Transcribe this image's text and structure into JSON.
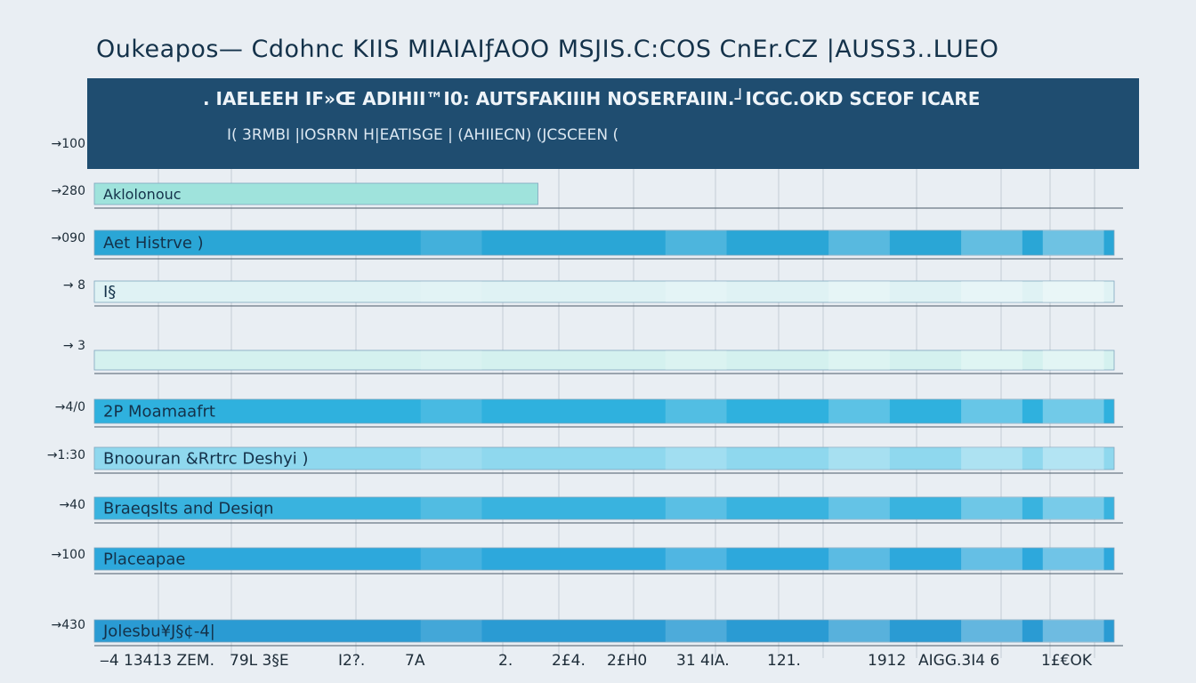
{
  "title": "Oukeapos— Cdohnc KIIS MIAIAIƒΑOO MSJIS.C:COS CnEr.CZ |AUSS3..LUEO",
  "header": {
    "line1": ". IAELEEH IF»Œ ADIHII™I0: AUTSFAKIIIH NOSERFAIIN.┘ICGC.OKD SCEOF ICARE",
    "line2": "I( 3RMBI |IOSRRN H|EATISGE | (AHIIECN) (JCSCEEN ("
  },
  "colors": {
    "background": "#e9eef3",
    "header": "#1f4d70",
    "bar_dark": "#1f97cf",
    "bar_mid": "#3db8e1",
    "bar_light": "#8fd8ee",
    "bar_mint": "#9fe3dc",
    "bar_pale": "#d4f1ef",
    "text_dark": "#14324a",
    "grid": "#c3ccd6"
  },
  "chart_data": {
    "type": "bar",
    "orientation": "horizontal",
    "title": "Oukeapos— Cdohnc KIIS MIAIAIƒΑOO MSJIS.C:COS CnEr.CZ |AUSS3..LUEO",
    "y_tick_labels": [
      "→100",
      "→280",
      "→090",
      "→ 8",
      "→ 3",
      "→4/0",
      "→1:30",
      "→40",
      "→100",
      "→430"
    ],
    "x_tick_labels": [
      "‒4 13413 ZEM.",
      "79L 3§E",
      "I2?.",
      "7A",
      "2.",
      "2£4.",
      "2£H0",
      "31 4IA.",
      "121.",
      "1912",
      "AIGG.3I4 6",
      "1£€OK"
    ],
    "categories": [
      "Aklolonouc",
      "Aet Histrve )",
      "I§",
      "",
      "2P Moamaafrt",
      "Bnoouran &Rrtrc Deshyi )",
      "Braeqslts and Desiqn",
      "Placeapae",
      "Jolesbu¥J§¢-4|"
    ],
    "values": [
      0.435,
      1.0,
      1.0,
      1.0,
      1.0,
      1.0,
      1.0,
      1.0,
      1.0
    ],
    "bar_colors": [
      "#9fe3dc",
      "#2aa6d6",
      "#dff2f4",
      "#d4f1ef",
      "#2fb1de",
      "#8fd8ee",
      "#39b3df",
      "#2da8dc",
      "#2a9bd3"
    ],
    "grid": true,
    "legend": "none"
  }
}
